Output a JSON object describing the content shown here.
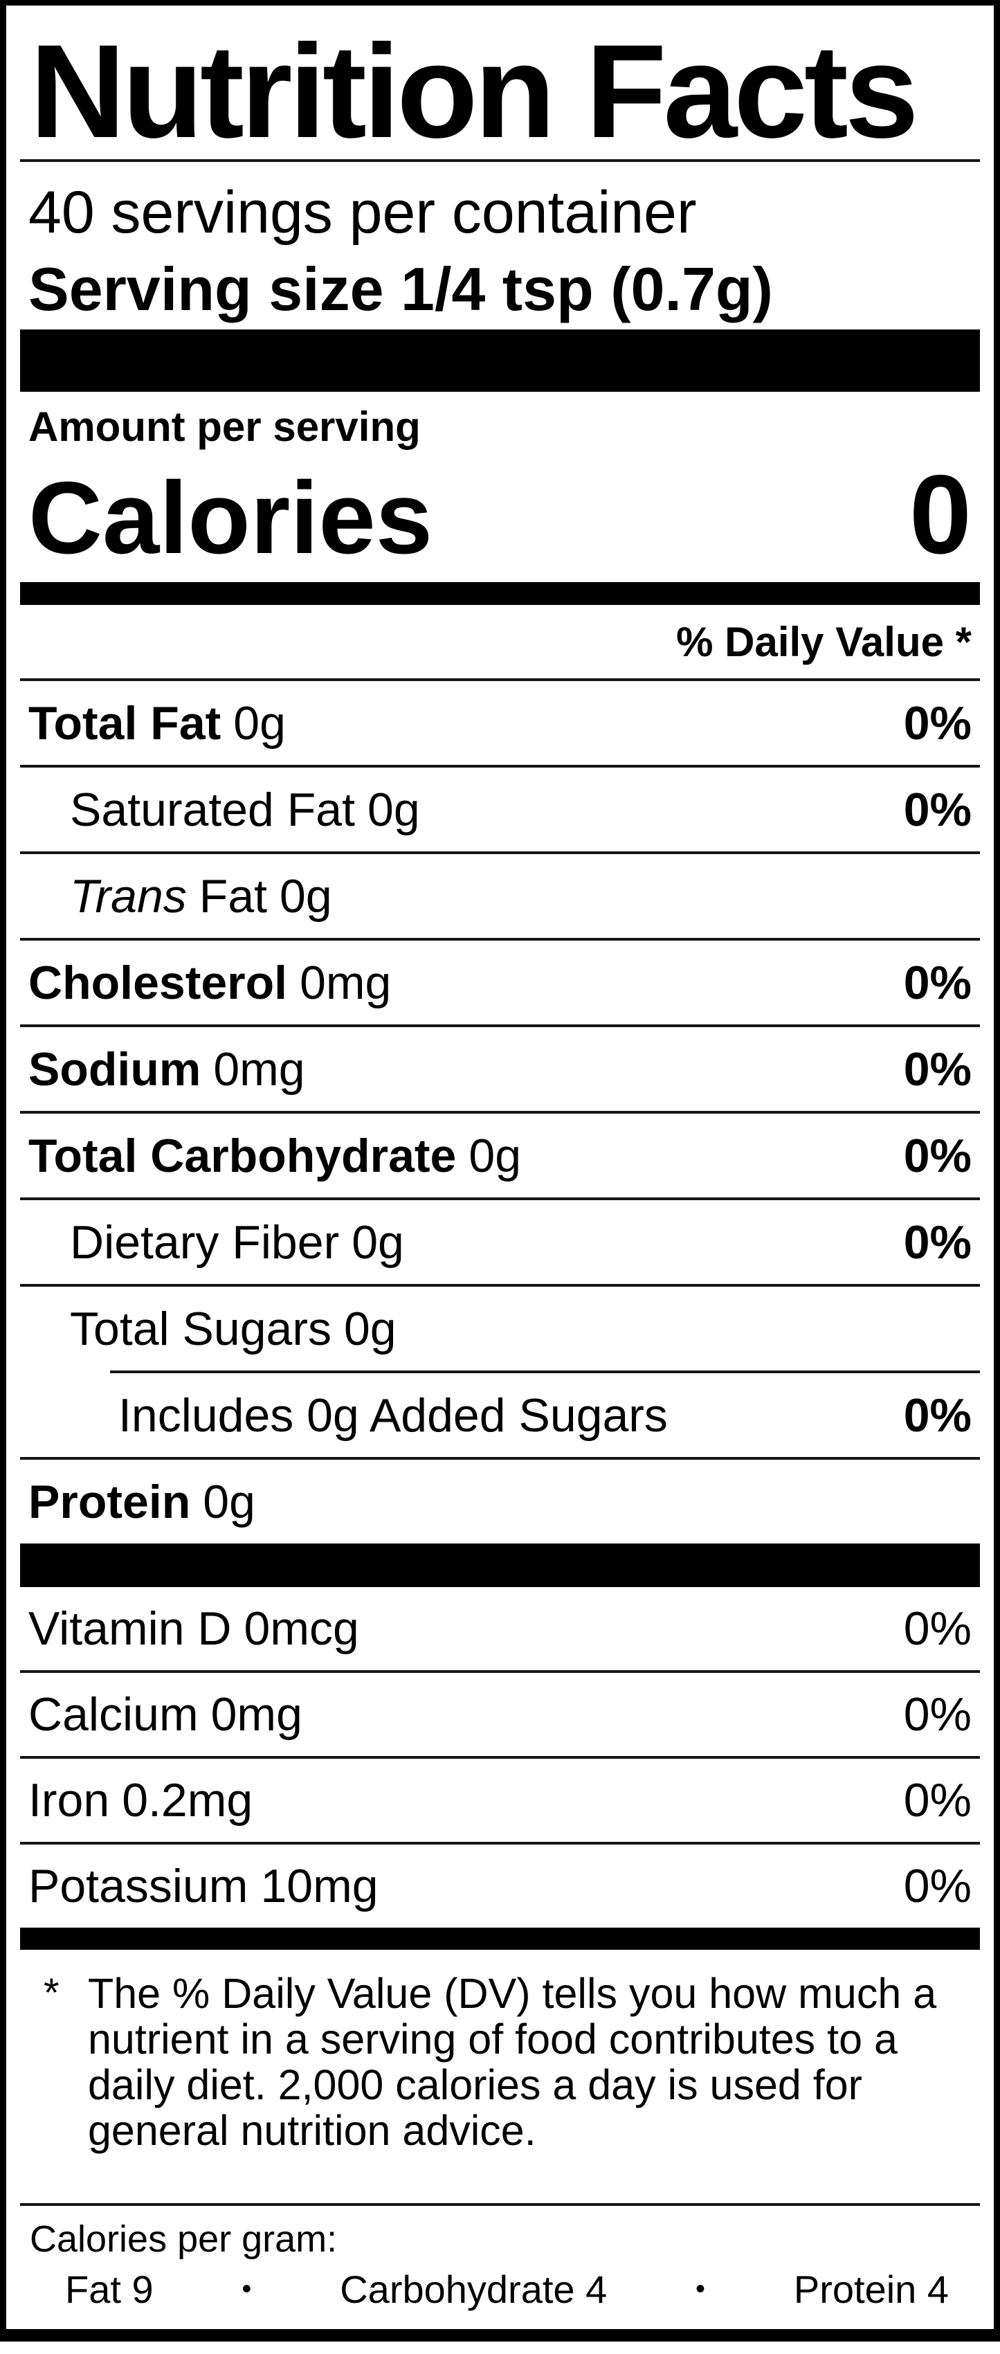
{
  "label": {
    "title": "Nutrition Facts",
    "servings_per_container": "40 servings per container",
    "serving_size": "Serving size 1/4 tsp (0.7g)",
    "amount_per_serving": "Amount per serving",
    "calories_label": "Calories",
    "calories_value": "0",
    "daily_value_header": "% Daily Value *",
    "nutrients": [
      {
        "name": "Total Fat",
        "amount": "0g",
        "dv": "0%"
      },
      {
        "name": "Saturated Fat",
        "amount": "0g",
        "dv": "0%"
      },
      {
        "name_italic": "Trans",
        "name": "Fat",
        "amount": "0g"
      },
      {
        "name": "Cholesterol",
        "amount": "0mg",
        "dv": "0%"
      },
      {
        "name": "Sodium",
        "amount": "0mg",
        "dv": "0%"
      },
      {
        "name": "Total Carbohydrate",
        "amount": "0g",
        "dv": "0%"
      },
      {
        "name": "Dietary Fiber",
        "amount": "0g",
        "dv": "0%"
      },
      {
        "name": "Total Sugars",
        "amount": "0g"
      },
      {
        "name": "Includes 0g Added Sugars",
        "dv": "0%"
      },
      {
        "name": "Protein",
        "amount": "0g"
      }
    ],
    "vitamins": [
      {
        "name": "Vitamin D",
        "amount": "0mcg",
        "dv": "0%"
      },
      {
        "name": "Calcium",
        "amount": "0mg",
        "dv": "0%"
      },
      {
        "name": "Iron",
        "amount": "0.2mg",
        "dv": "0%"
      },
      {
        "name": "Potassium",
        "amount": "10mg",
        "dv": "0%"
      }
    ],
    "footnote": {
      "marker": "*",
      "text": "The % Daily Value (DV) tells you how much a nutrient in a serving of food contributes to a daily diet. 2,000 calories a day is used for general nutrition advice."
    },
    "calories_per_gram": {
      "heading": "Calories per gram:",
      "fat": "Fat 9",
      "carbohydrate": "Carbohydrate 4",
      "protein": "Protein 4",
      "bullet": "•"
    },
    "colors": {
      "ink": "#000000",
      "paper": "#ffffff"
    }
  }
}
